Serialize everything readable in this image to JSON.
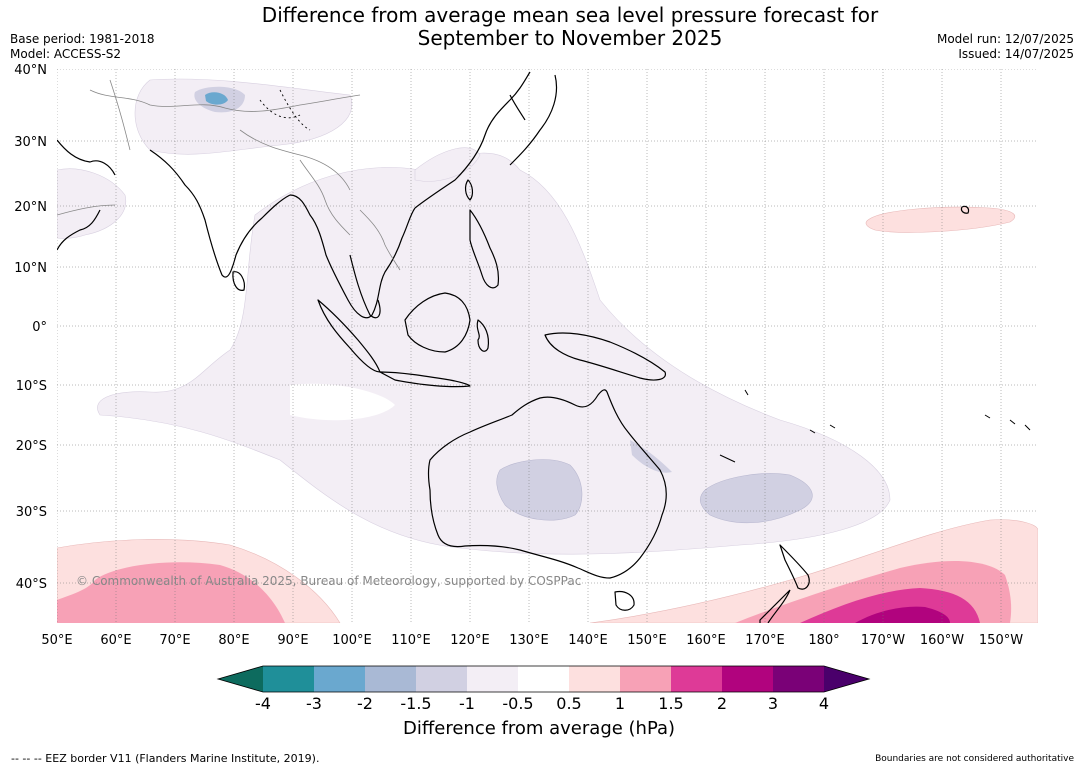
{
  "title": {
    "line1": "Difference from average mean sea level pressure forecast for",
    "line2": "September to November 2025"
  },
  "meta": {
    "base_period": "Base period: 1981-2018",
    "model": "Model: ACCESS-S2",
    "model_run": "Model run: 12/07/2025",
    "issued": "Issued: 14/07/2025"
  },
  "lat_labels": [
    "40°N",
    "30°N",
    "20°N",
    "10°N",
    "0°",
    "10°S",
    "20°S",
    "30°S",
    "40°S"
  ],
  "lon_labels": [
    "50°E",
    "60°E",
    "70°E",
    "80°E",
    "90°E",
    "100°E",
    "110°E",
    "120°E",
    "130°E",
    "140°E",
    "150°E",
    "160°E",
    "170°E",
    "180°",
    "170°W",
    "160°W",
    "150°W"
  ],
  "copyright": "© Commonwealth of Australia 2025, Bureau of Meteorology, supported by COSPPac",
  "colorbar": {
    "title": "Difference from average (hPa)",
    "ticks": [
      "-4",
      "-3",
      "-2",
      "-1.5",
      "-1",
      "-0.5",
      "0.5",
      "1",
      "1.5",
      "2",
      "3",
      "4"
    ],
    "colors": {
      "below_min": "#0d6b5e",
      "b1": "#1f8f99",
      "b2": "#6aa8cf",
      "b3": "#a9b9d5",
      "b4": "#d1d0e2",
      "b5": "#f3eef5",
      "b6": "#ffffff",
      "b7": "#fde0df",
      "b8": "#f7a1b6",
      "b9": "#de3a97",
      "b10": "#b1037e",
      "b11": "#7a0177",
      "above_max": "#4a006b"
    }
  },
  "footer": {
    "eez": "--  --  -- EEZ border V11 (Flanders Marine Institute, 2019).",
    "boundaries": "Boundaries are not considered authoritative"
  }
}
